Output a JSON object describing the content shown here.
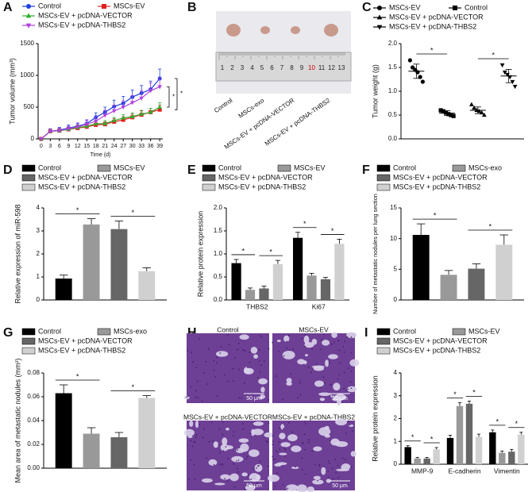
{
  "chart_data": [
    {
      "panel": "A",
      "type": "line",
      "xlabel": "Time (d)",
      "ylabel": "Tumor volume (mm³)",
      "x": [
        0,
        3,
        6,
        9,
        12,
        15,
        18,
        21,
        24,
        27,
        30,
        33,
        36,
        39
      ],
      "xlim": [
        -1,
        40
      ],
      "xticks": [
        0,
        3,
        6,
        9,
        12,
        15,
        18,
        21,
        24,
        27,
        30,
        33,
        36,
        39
      ],
      "ylim": [
        0,
        1500
      ],
      "yticks": [
        0,
        500,
        1000,
        1500
      ],
      "series": [
        {
          "name": "Control",
          "color": "#1f3fe0",
          "marker": "circle",
          "values": [
            0,
            120,
            140,
            170,
            200,
            240,
            340,
            420,
            510,
            560,
            660,
            720,
            780,
            950
          ],
          "errors": [
            0,
            40,
            40,
            50,
            50,
            60,
            70,
            80,
            100,
            110,
            110,
            120,
            130,
            150
          ]
        },
        {
          "name": "MSCs-EV",
          "color": "#e0201c",
          "marker": "square",
          "values": [
            0,
            120,
            130,
            150,
            170,
            190,
            220,
            230,
            270,
            300,
            340,
            380,
            420,
            460
          ],
          "errors": [
            0,
            30,
            30,
            30,
            30,
            40,
            40,
            40,
            50,
            50,
            50,
            60,
            60,
            70
          ]
        },
        {
          "name": "MSCs-EV + pcDNA-VECTOR",
          "color": "#2fae2f",
          "marker": "triangle",
          "values": [
            0,
            120,
            130,
            150,
            180,
            200,
            240,
            240,
            290,
            330,
            350,
            390,
            420,
            500
          ],
          "errors": [
            0,
            30,
            30,
            30,
            40,
            40,
            40,
            50,
            50,
            50,
            60,
            60,
            60,
            70
          ]
        },
        {
          "name": "MSCs-EV + pcDNA-THBS2",
          "color": "#b040e0",
          "marker": "triangle-down",
          "values": [
            0,
            120,
            130,
            160,
            190,
            230,
            280,
            370,
            440,
            500,
            570,
            640,
            760,
            820
          ],
          "errors": [
            0,
            40,
            40,
            40,
            50,
            60,
            70,
            80,
            90,
            100,
            110,
            120,
            120,
            130
          ]
        }
      ],
      "significance": [
        "*",
        "*"
      ]
    },
    {
      "panel": "B",
      "type": "image",
      "labels": [
        "Control",
        "MSCs-exo",
        "MSCs-EV + pcDNA-VECTOR",
        "MSCs-EV + pcDNA-THBS2"
      ],
      "ruler": [
        1,
        2,
        3,
        4,
        5,
        6,
        7,
        8,
        9,
        10,
        11,
        12,
        13
      ]
    },
    {
      "panel": "C",
      "type": "scatter",
      "ylabel": "Tumor weight (g)",
      "ylim": [
        0,
        2
      ],
      "yticks": [
        {
          "value": 0,
          "label": "0.0"
        },
        0.5,
        {
          "value": 1,
          "label": "1.0"
        },
        1.5,
        {
          "value": 2,
          "label": "2.0"
        }
      ],
      "series": [
        {
          "name": "MSCs-EV",
          "color": "#000000",
          "marker": "circle",
          "values": [
            1.65,
            1.5,
            1.45,
            1.4,
            1.3,
            1.2
          ],
          "mean": 1.42,
          "sd": 0.15
        },
        {
          "name": "Control",
          "color": "#000000",
          "marker": "square",
          "values": [
            0.6,
            0.58,
            0.55,
            0.52,
            0.5,
            0.48
          ],
          "mean": 0.54,
          "sd": 0.05
        },
        {
          "name": "MSCs-EV + pcDNA-VECTOR",
          "color": "#000000",
          "marker": "triangle",
          "values": [
            0.72,
            0.65,
            0.6,
            0.58,
            0.55,
            0.5
          ],
          "mean": 0.6,
          "sd": 0.07
        },
        {
          "name": "MSCs-EV + pcDNA-THBS2",
          "color": "#000000",
          "marker": "triangle-down",
          "values": [
            1.55,
            1.4,
            1.35,
            1.3,
            1.2,
            1.1
          ],
          "mean": 1.32,
          "sd": 0.14
        }
      ],
      "significance": [
        "*",
        "*"
      ]
    },
    {
      "panel": "D",
      "type": "bar",
      "ylabel": "Relative expression of miR-598",
      "ylim": [
        0,
        4
      ],
      "yticks": [
        0,
        1,
        2,
        3,
        4
      ],
      "series": [
        {
          "name": "Control",
          "color": "#000000",
          "values": [
            0.93
          ],
          "errors": [
            0.15
          ]
        },
        {
          "name": "MSCs-EV",
          "color": "#999999",
          "values": [
            3.28
          ],
          "errors": [
            0.25
          ]
        },
        {
          "name": "MSCs-EV + pcDNA-VECTOR",
          "color": "#666666",
          "values": [
            3.08
          ],
          "errors": [
            0.35
          ]
        },
        {
          "name": "MSCs-EV + pcDNA-THBS2",
          "color": "#d0d0d0",
          "values": [
            1.25
          ],
          "errors": [
            0.15
          ]
        }
      ],
      "significance": [
        [
          "*",
          "*"
        ]
      ]
    },
    {
      "panel": "E",
      "type": "bar",
      "ylabel": "Relative protein expression",
      "categories": [
        "THBS2",
        "Ki67"
      ],
      "ylim": [
        0,
        2
      ],
      "yticks": [
        {
          "value": 0,
          "label": "0.0"
        },
        0.5,
        {
          "value": 1,
          "label": "1.0"
        },
        1.5,
        {
          "value": 2,
          "label": "2.0"
        }
      ],
      "series": [
        {
          "name": "Control",
          "color": "#000000",
          "values": [
            0.8,
            1.35
          ],
          "errors": [
            0.08,
            0.12
          ]
        },
        {
          "name": "MSCs-EV",
          "color": "#999999",
          "values": [
            0.22,
            0.53
          ],
          "errors": [
            0.04,
            0.05
          ]
        },
        {
          "name": "MSCs-EV + pcDNA-VECTOR",
          "color": "#666666",
          "values": [
            0.25,
            0.45
          ],
          "errors": [
            0.05,
            0.04
          ]
        },
        {
          "name": "MSCs-EV + pcDNA-THBS2",
          "color": "#d0d0d0",
          "values": [
            0.78,
            1.22
          ],
          "errors": [
            0.08,
            0.1
          ]
        }
      ],
      "significance": [
        [
          "*",
          "*"
        ],
        [
          "*",
          "*"
        ]
      ]
    },
    {
      "panel": "F",
      "type": "bar",
      "ylabel": "Number of metastatic nodules per lung section",
      "ylim": [
        0,
        15
      ],
      "yticks": [
        0,
        5,
        10,
        15
      ],
      "series": [
        {
          "name": "Control",
          "color": "#000000",
          "values": [
            10.6
          ],
          "errors": [
            1.8
          ]
        },
        {
          "name": "MSCs-exo",
          "color": "#999999",
          "values": [
            4.1
          ],
          "errors": [
            0.7
          ]
        },
        {
          "name": "MSCs-EV + pcDNA-VECTOR",
          "color": "#666666",
          "values": [
            5.1
          ],
          "errors": [
            0.8
          ]
        },
        {
          "name": "MSCs-EV + pcDNA-THBS2",
          "color": "#d0d0d0",
          "values": [
            9.0
          ],
          "errors": [
            1.6
          ]
        }
      ],
      "significance": [
        [
          "*",
          "*"
        ]
      ]
    },
    {
      "panel": "G",
      "type": "bar",
      "ylabel": "Mean area of metastatic nodules (mm²)",
      "ylim": [
        0,
        0.08
      ],
      "yticks": [
        {
          "value": 0,
          "label": "0.00"
        },
        0.02,
        0.04,
        0.06,
        0.08
      ],
      "series": [
        {
          "name": "Control",
          "color": "#000000",
          "values": [
            0.063
          ],
          "errors": [
            0.007
          ]
        },
        {
          "name": "MSCs-exo",
          "color": "#999999",
          "values": [
            0.029
          ],
          "errors": [
            0.005
          ]
        },
        {
          "name": "MSCs-EV + pcDNA-VECTOR",
          "color": "#666666",
          "values": [
            0.026
          ],
          "errors": [
            0.004
          ]
        },
        {
          "name": "MSCs-EV + pcDNA-THBS2",
          "color": "#d0d0d0",
          "values": [
            0.059
          ],
          "errors": [
            0.002
          ]
        }
      ],
      "significance": [
        [
          "*",
          "*"
        ]
      ]
    },
    {
      "panel": "H",
      "type": "image",
      "labels": [
        "Control",
        "MSCs-EV",
        "MSCs-EV + pcDNA-VECTOR",
        "MSCs-EV + pcDNA-THBS2"
      ],
      "scale_bar": "50 μm"
    },
    {
      "panel": "I",
      "type": "bar",
      "ylabel": "Relative protein expression",
      "categories": [
        "MMP-9",
        "E-cadherin",
        "Vimentin"
      ],
      "ylim": [
        0,
        4
      ],
      "yticks": [
        0,
        1,
        2,
        3,
        4
      ],
      "series": [
        {
          "name": "Control",
          "color": "#000000",
          "values": [
            0.75,
            1.15,
            1.4
          ],
          "errors": [
            0.06,
            0.12,
            0.1
          ]
        },
        {
          "name": "MSCs-EV",
          "color": "#999999",
          "values": [
            0.25,
            2.55,
            0.5
          ],
          "errors": [
            0.05,
            0.15,
            0.08
          ]
        },
        {
          "name": "MSCs-EV + pcDNA-VECTOR",
          "color": "#666666",
          "values": [
            0.25,
            2.65,
            0.55
          ],
          "errors": [
            0.05,
            0.12,
            0.1
          ]
        },
        {
          "name": "MSCs-EV + pcDNA-THBS2",
          "color": "#d0d0d0",
          "values": [
            0.65,
            1.2,
            1.3
          ],
          "errors": [
            0.08,
            0.12,
            0.1
          ]
        }
      ],
      "significance": [
        [
          "*",
          "*"
        ],
        [
          "*",
          "*"
        ],
        [
          "*",
          "*"
        ]
      ]
    }
  ]
}
